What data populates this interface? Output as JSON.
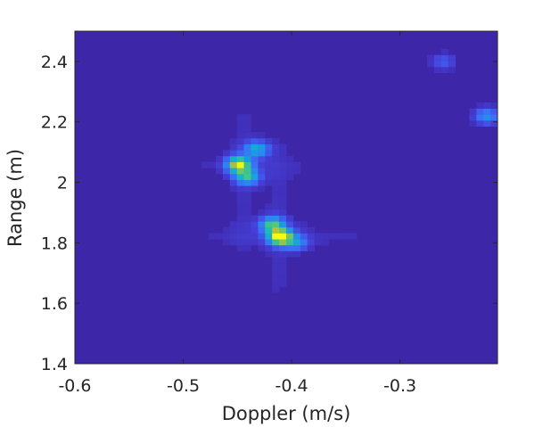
{
  "chart_data": {
    "type": "heatmap",
    "title": "",
    "xlabel": "Doppler (m/s)",
    "ylabel": "Range (m)",
    "xlim": [
      -0.6,
      -0.21
    ],
    "ylim": [
      1.4,
      2.5
    ],
    "x_ticks": [
      -0.6,
      -0.5,
      -0.4,
      -0.3
    ],
    "x_tick_labels": [
      "-0.6",
      "-0.5",
      "-0.4",
      "-0.3"
    ],
    "y_ticks": [
      1.4,
      1.6,
      1.8,
      2.0,
      2.2,
      2.4
    ],
    "y_tick_labels": [
      "1.4",
      "1.6",
      "1.8",
      "2",
      "2.2",
      "2.4"
    ],
    "colormap": "parula",
    "background_color": "#3e26a8",
    "grid": false,
    "peaks": [
      {
        "doppler": -0.449,
        "range": 2.06,
        "intensity": 0.85
      },
      {
        "doppler": -0.441,
        "range": 2.02,
        "intensity": 0.55
      },
      {
        "doppler": -0.432,
        "range": 2.11,
        "intensity": 0.45
      },
      {
        "doppler": -0.41,
        "range": 1.82,
        "intensity": 1.0
      },
      {
        "doppler": -0.418,
        "range": 1.86,
        "intensity": 0.6
      },
      {
        "doppler": -0.395,
        "range": 1.8,
        "intensity": 0.3
      },
      {
        "doppler": -0.22,
        "range": 2.22,
        "intensity": 0.35
      },
      {
        "doppler": -0.26,
        "range": 2.4,
        "intensity": 0.18
      }
    ]
  }
}
